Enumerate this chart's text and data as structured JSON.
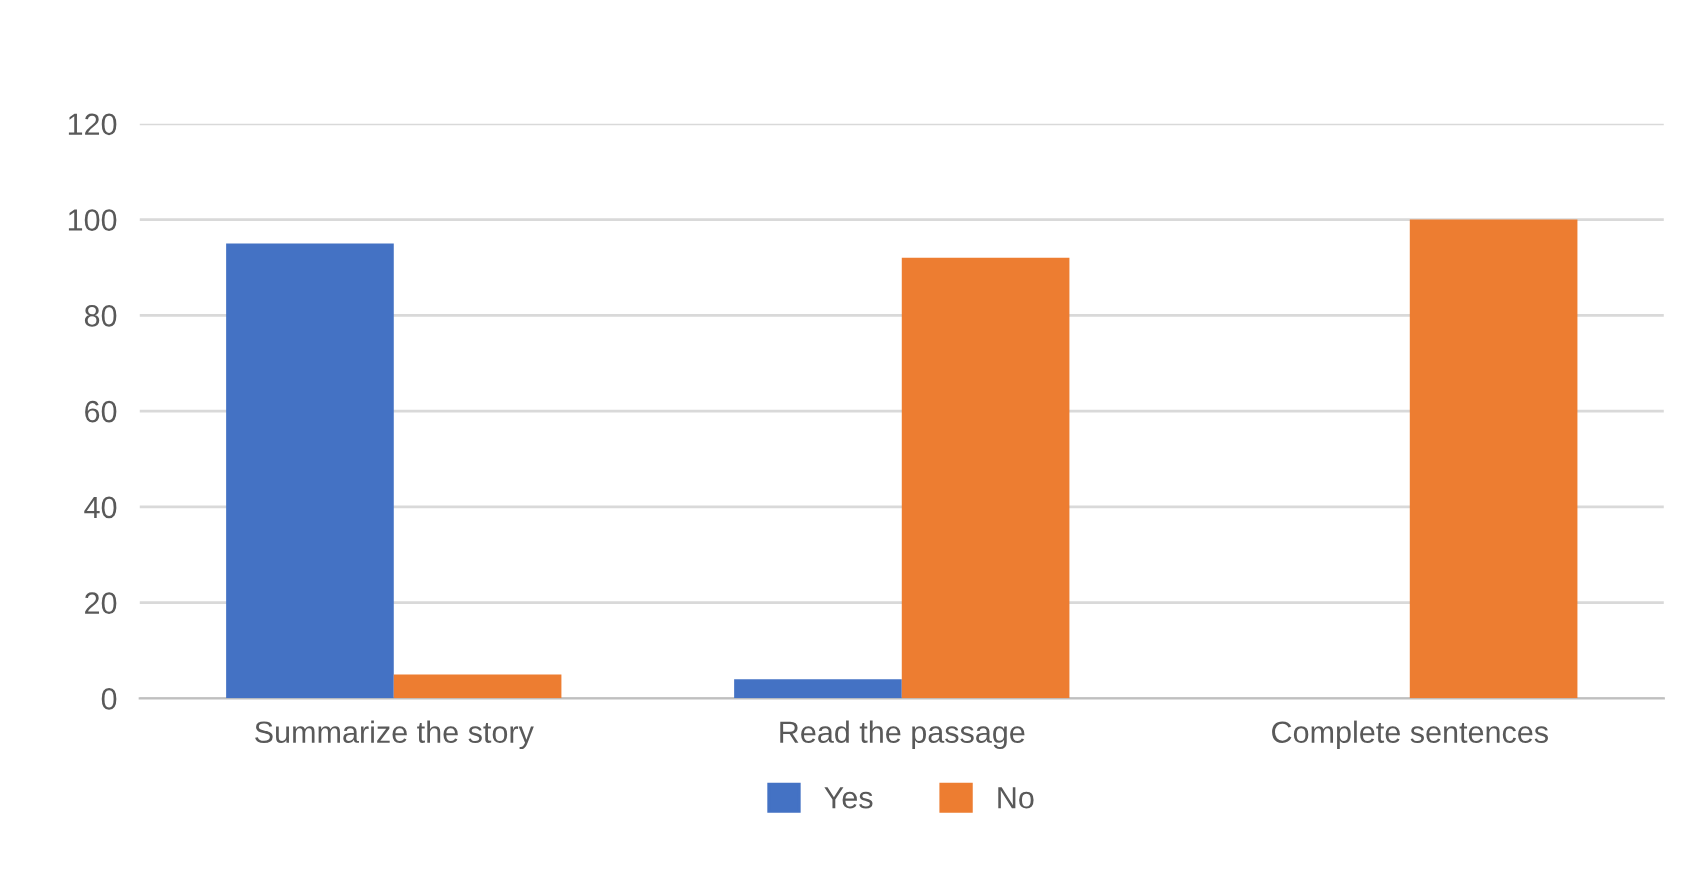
{
  "chart_data": {
    "type": "bar",
    "categories": [
      "Summarize the story",
      "Read the passage",
      "Complete sentences"
    ],
    "series": [
      {
        "name": "Yes",
        "color": "#4472c4",
        "values": [
          95,
          4,
          0
        ]
      },
      {
        "name": "No",
        "color": "#ed7d31",
        "values": [
          5,
          92,
          100
        ]
      }
    ],
    "ylim": [
      0,
      120
    ],
    "yticks": [
      0,
      20,
      40,
      60,
      80,
      100,
      120
    ],
    "grid": "y",
    "legend": "bottom"
  }
}
